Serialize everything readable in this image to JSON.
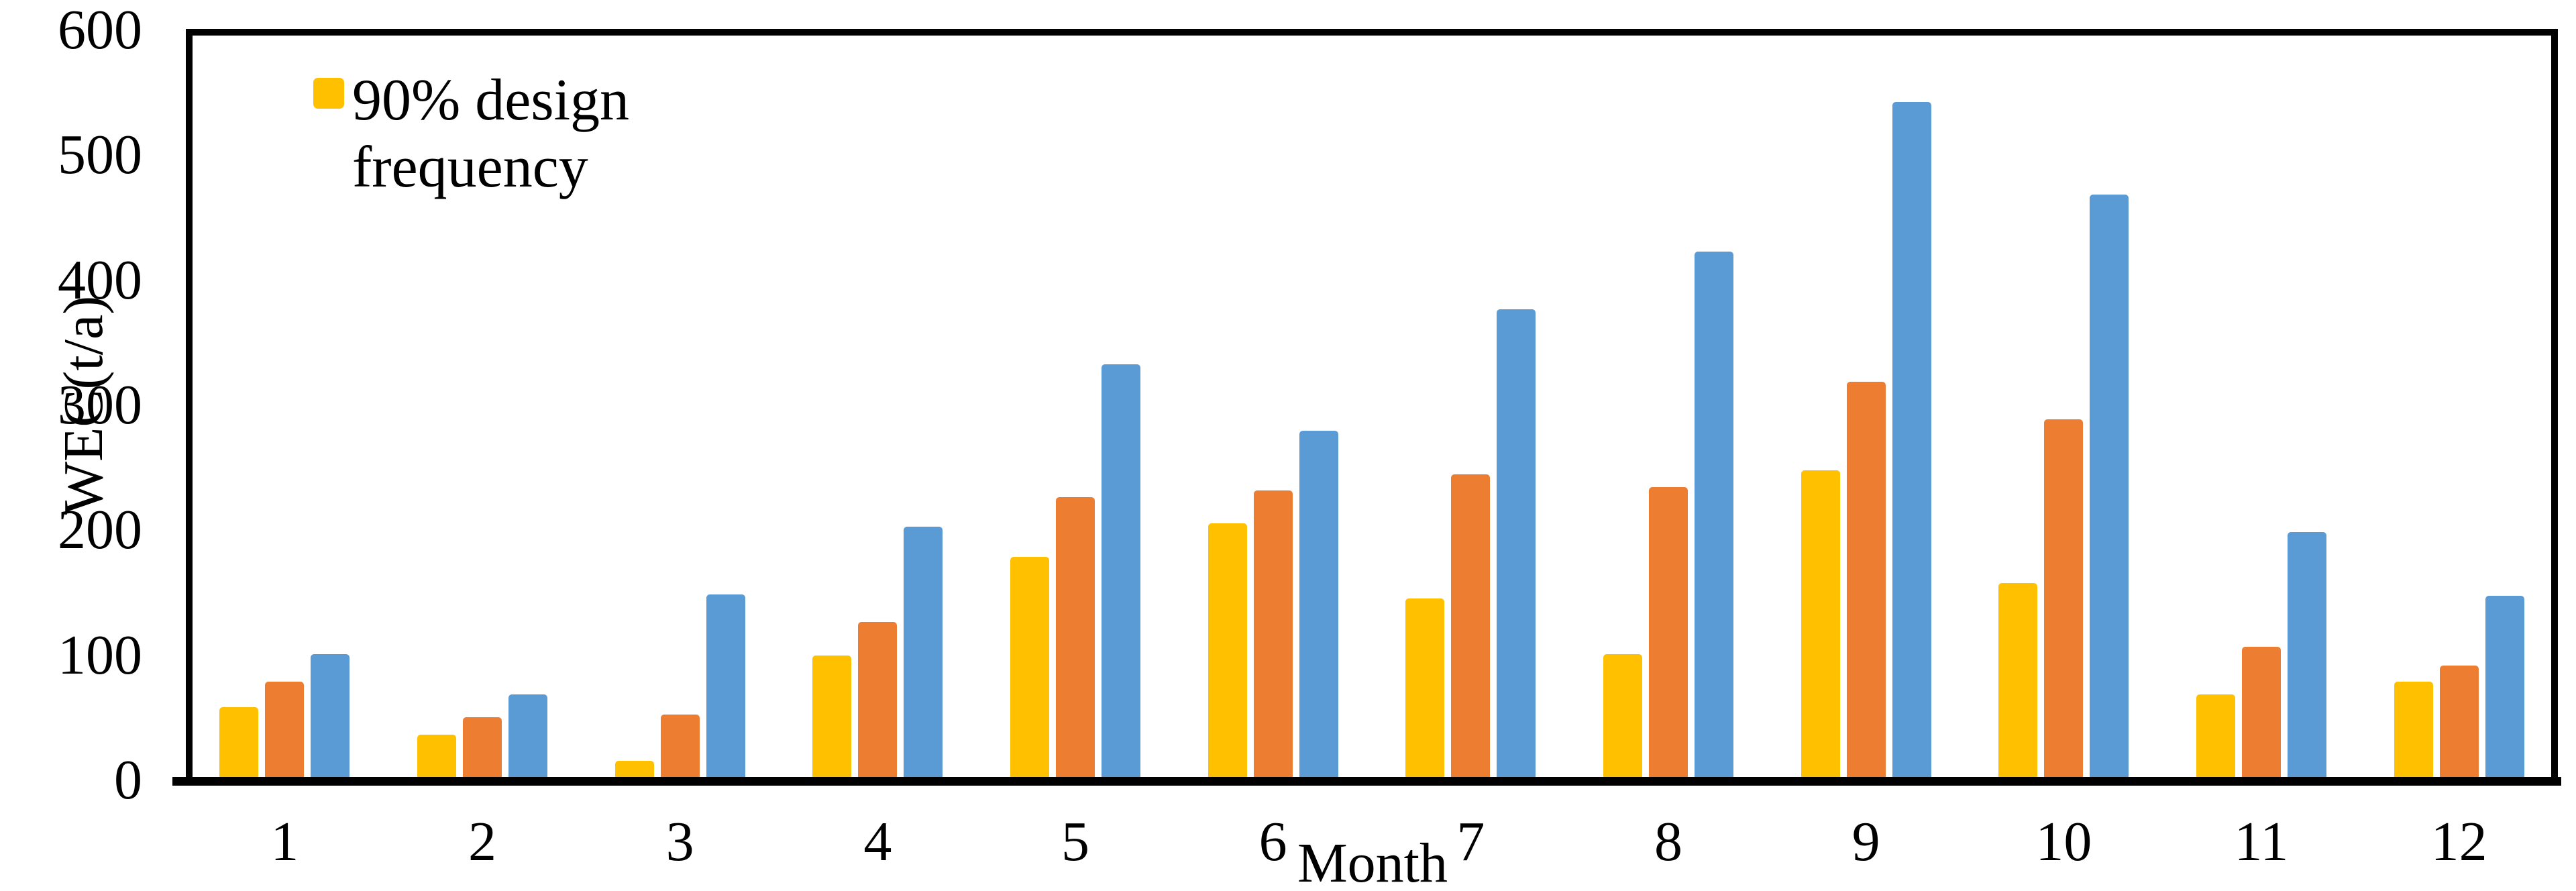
{
  "colors": {
    "background": "#FFFFFF",
    "axis": "#000000",
    "text": "#000000"
  },
  "legend": {
    "lines": [
      "90% design",
      "frequency"
    ],
    "swatch_color": "#FFC000"
  },
  "chart_data": {
    "type": "bar",
    "title": "",
    "xlabel": "Month",
    "ylabel": "WEC(t/a)",
    "ylim": [
      0,
      600
    ],
    "y_ticks": [
      0,
      100,
      200,
      300,
      400,
      500,
      600
    ],
    "categories": [
      "1",
      "2",
      "3",
      "4",
      "5",
      "6",
      "7",
      "8",
      "9",
      "10",
      "11",
      "12"
    ],
    "series": [
      {
        "name": "90% design frequency",
        "color": "#FFC000",
        "values": [
          56,
          34,
          13,
          97,
          176,
          203,
          143,
          98,
          245,
          155,
          66,
          76
        ]
      },
      {
        "name": "",
        "color": "#ED7D31",
        "values": [
          76,
          48,
          50,
          124,
          224,
          229,
          242,
          232,
          316,
          286,
          104,
          89
        ]
      },
      {
        "name": "",
        "color": "#5B9BD5",
        "values": [
          98,
          66,
          146,
          200,
          330,
          277,
          374,
          420,
          540,
          466,
          196,
          145
        ]
      }
    ],
    "legend_position": "inside-top-left",
    "grid": false
  }
}
